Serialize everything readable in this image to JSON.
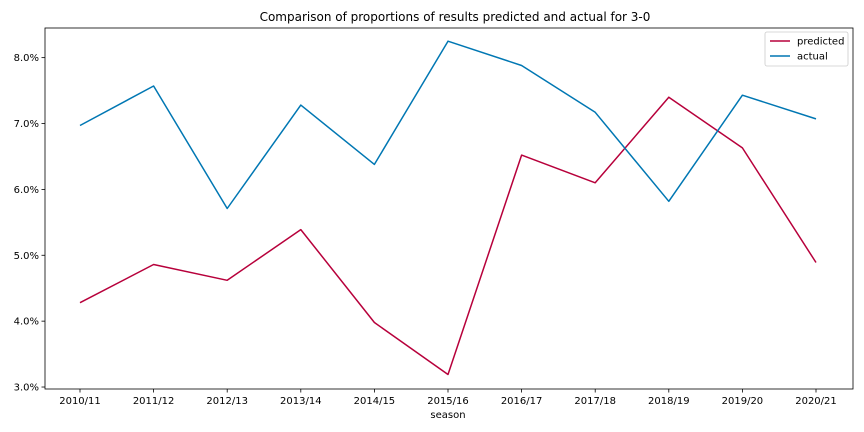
{
  "chart_data": {
    "type": "line",
    "title": "Comparison of proportions of results predicted and actual for 3-0",
    "xlabel": "season",
    "ylabel": "",
    "categories": [
      "2010/11",
      "2011/12",
      "2012/13",
      "2013/14",
      "2014/15",
      "2015/16",
      "2016/17",
      "2017/18",
      "2018/19",
      "2019/20",
      "2020/21"
    ],
    "ylim": [
      2.97,
      8.45
    ],
    "yticks": [
      3.0,
      4.0,
      5.0,
      6.0,
      7.0,
      8.0
    ],
    "ytick_labels": [
      "3.0%",
      "4.0%",
      "5.0%",
      "6.0%",
      "7.0%",
      "8.0%"
    ],
    "grid": false,
    "legend": "top-right",
    "series": [
      {
        "name": "predicted",
        "color": "#b7003b",
        "values": [
          4.28,
          4.86,
          4.62,
          5.39,
          3.98,
          3.19,
          6.52,
          6.1,
          7.4,
          6.63,
          4.89
        ]
      },
      {
        "name": "actual",
        "color": "#0077b3",
        "values": [
          6.97,
          7.57,
          5.71,
          7.28,
          6.38,
          8.25,
          7.88,
          7.17,
          5.82,
          7.43,
          7.07
        ]
      }
    ]
  }
}
